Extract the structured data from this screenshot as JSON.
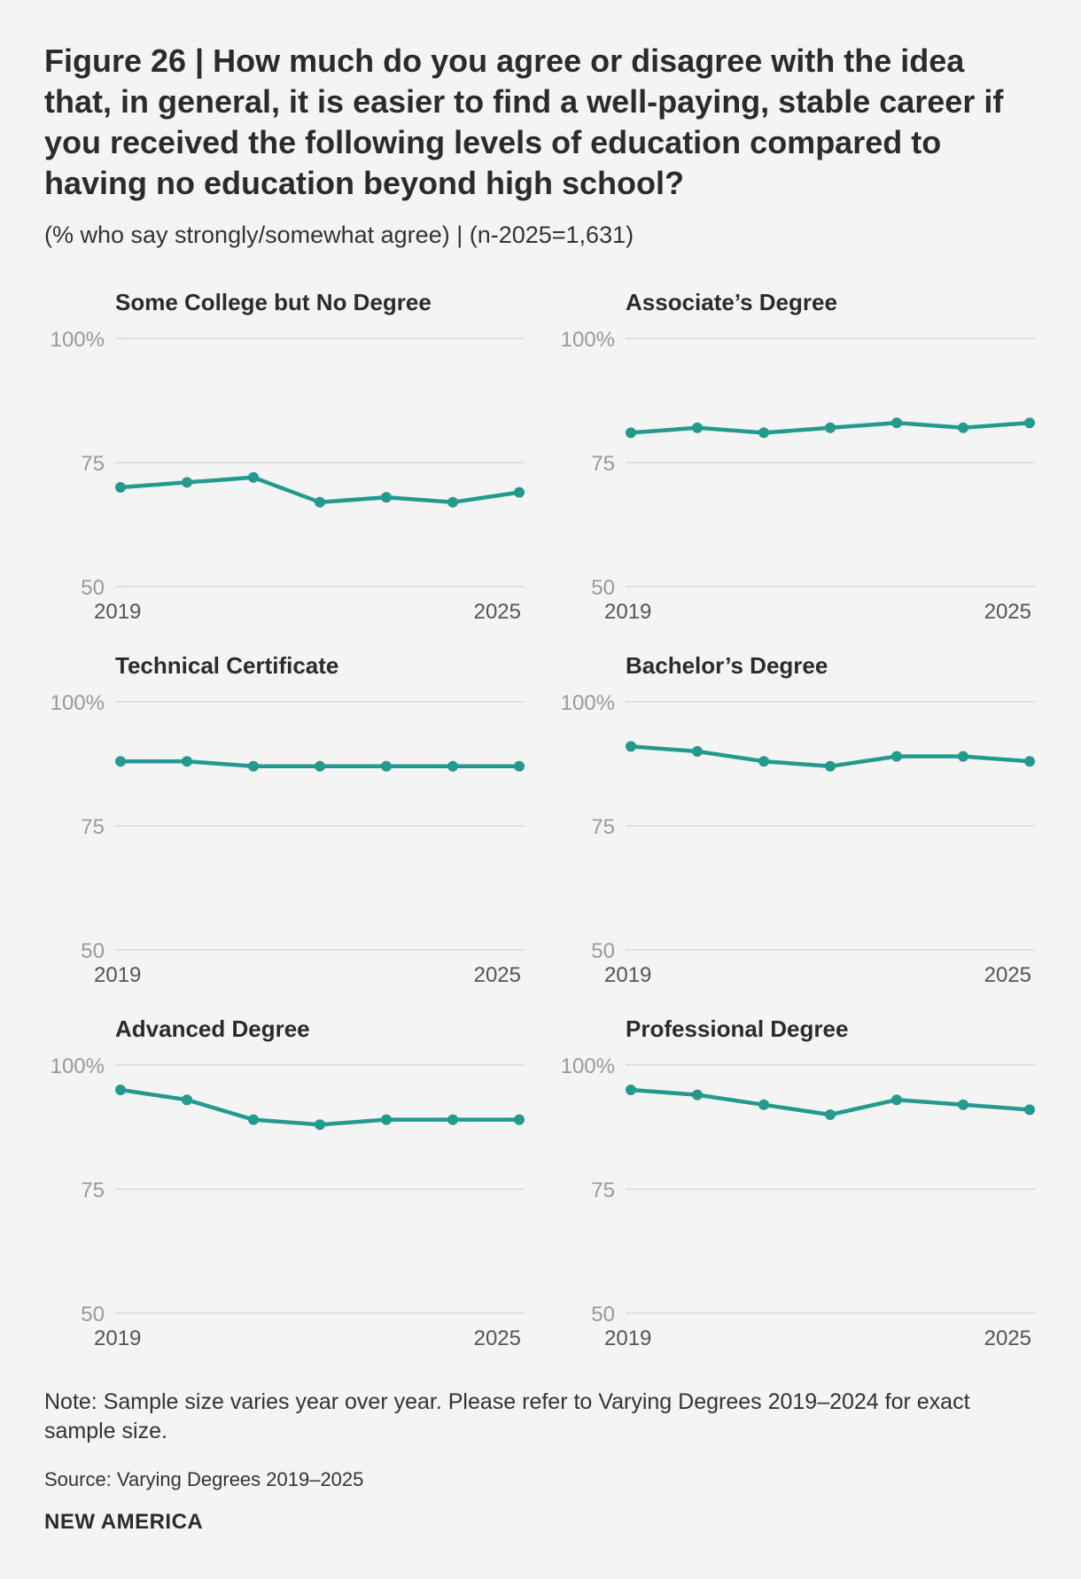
{
  "header": {
    "title": "Figure 26 | How much do you agree or disagree with the idea that, in general, it is easier to find a well-paying, stable career if you received the following levels of education compared to having no education beyond high school?",
    "subtitle": "(% who say strongly/somewhat agree) | (n-2025=1,631)"
  },
  "colors": {
    "line": "#229a8d",
    "grid": "#d9d9d9",
    "tick": "#9a9a9a"
  },
  "chart_data": [
    {
      "type": "line",
      "title": "Some College but No Degree",
      "x": [
        2019,
        2020,
        2021,
        2022,
        2023,
        2024,
        2025
      ],
      "values": [
        70,
        71,
        72,
        67,
        68,
        67,
        69
      ],
      "yticks": [
        "100%",
        "75",
        "50"
      ],
      "ylim": [
        50,
        100
      ],
      "xtick_labels": [
        "2019",
        "2025"
      ]
    },
    {
      "type": "line",
      "title": "Associate’s Degree",
      "x": [
        2019,
        2020,
        2021,
        2022,
        2023,
        2024,
        2025
      ],
      "values": [
        81,
        82,
        81,
        82,
        83,
        82,
        83
      ],
      "yticks": [
        "100%",
        "75",
        "50"
      ],
      "ylim": [
        50,
        100
      ],
      "xtick_labels": [
        "2019",
        "2025"
      ]
    },
    {
      "type": "line",
      "title": "Technical Certificate",
      "x": [
        2019,
        2020,
        2021,
        2022,
        2023,
        2024,
        2025
      ],
      "values": [
        88,
        88,
        87,
        87,
        87,
        87,
        87
      ],
      "yticks": [
        "100%",
        "75",
        "50"
      ],
      "ylim": [
        50,
        100
      ],
      "xtick_labels": [
        "2019",
        "2025"
      ]
    },
    {
      "type": "line",
      "title": "Bachelor’s Degree",
      "x": [
        2019,
        2020,
        2021,
        2022,
        2023,
        2024,
        2025
      ],
      "values": [
        91,
        90,
        88,
        87,
        89,
        89,
        88
      ],
      "yticks": [
        "100%",
        "75",
        "50"
      ],
      "ylim": [
        50,
        100
      ],
      "xtick_labels": [
        "2019",
        "2025"
      ]
    },
    {
      "type": "line",
      "title": "Advanced Degree",
      "x": [
        2019,
        2020,
        2021,
        2022,
        2023,
        2024,
        2025
      ],
      "values": [
        95,
        93,
        89,
        88,
        89,
        89,
        89
      ],
      "yticks": [
        "100%",
        "75",
        "50"
      ],
      "ylim": [
        50,
        100
      ],
      "xtick_labels": [
        "2019",
        "2025"
      ]
    },
    {
      "type": "line",
      "title": "Professional Degree",
      "x": [
        2019,
        2020,
        2021,
        2022,
        2023,
        2024,
        2025
      ],
      "values": [
        95,
        94,
        92,
        90,
        93,
        92,
        91
      ],
      "yticks": [
        "100%",
        "75",
        "50"
      ],
      "ylim": [
        50,
        100
      ],
      "xtick_labels": [
        "2019",
        "2025"
      ]
    }
  ],
  "footer": {
    "note": "Note: Sample size varies year over year. Please refer to Varying Degrees 2019–2024 for exact sample size.",
    "source": "Source: Varying Degrees 2019–2025",
    "brand": "NEW AMERICA"
  }
}
